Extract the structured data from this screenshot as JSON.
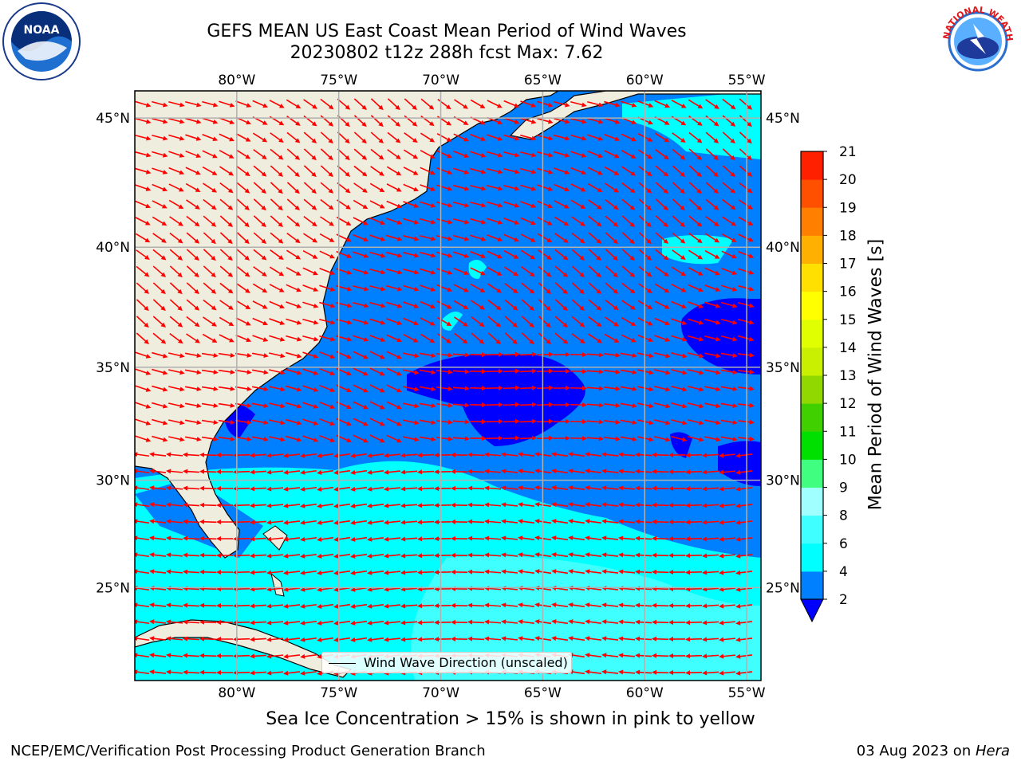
{
  "header": {
    "title_line1": "GEFS MEAN US East Coast Mean Period of Wind Waves",
    "title_line2": "20230802 t12z 288h fcst   Max: 7.62"
  },
  "logos": {
    "left": {
      "name": "noaa-logo",
      "text": "NOAA"
    },
    "right": {
      "name": "nws-logo",
      "text": "NATIONAL WEATHER SERVICE"
    }
  },
  "map": {
    "lon_range": [
      -85,
      -54.3
    ],
    "lat_range": [
      20.5,
      46
    ],
    "lon_ticks": [
      {
        "value": -80,
        "label": "80°W"
      },
      {
        "value": -75,
        "label": "75°W"
      },
      {
        "value": -70,
        "label": "70°W"
      },
      {
        "value": -65,
        "label": "65°W"
      },
      {
        "value": -60,
        "label": "60°W"
      },
      {
        "value": -55,
        "label": "55°W"
      }
    ],
    "lat_ticks": [
      {
        "value": 45,
        "label": "45°N"
      },
      {
        "value": 40,
        "label": "40°N"
      },
      {
        "value": 35,
        "label": "35°N"
      },
      {
        "value": 30,
        "label": "30°N"
      },
      {
        "value": 25,
        "label": "25°N"
      }
    ],
    "land_color": "#efeddd",
    "grid_color": "#b0b0b0",
    "arrow_color": "#ff0000",
    "legend_label": "Wind Wave Direction (unscaled)"
  },
  "colorbar": {
    "label": "Mean Period of Wind Waves [s]",
    "ticks": [
      "2",
      "4",
      "6",
      "8",
      "9",
      "10",
      "11",
      "12",
      "13",
      "14",
      "15",
      "16",
      "17",
      "18",
      "19",
      "20",
      "21"
    ],
    "colors": [
      "#0080ff",
      "#00ffff",
      "#40ffff",
      "#a0ffff",
      "#40ff80",
      "#00e000",
      "#40d000",
      "#90d800",
      "#c8f000",
      "#e0ff00",
      "#ffff00",
      "#ffe000",
      "#ffb000",
      "#ff8000",
      "#ff5000",
      "#ff2000",
      "#ff0000"
    ],
    "under_color": "#0000ff"
  },
  "caption": "Sea Ice Concentration > 15% is shown in pink to yellow",
  "footer": {
    "left": "NCEP/EMC/Verification Post Processing Product Generation Branch",
    "right_date": "03 Aug 2023 on ",
    "right_machine": "Hera"
  }
}
